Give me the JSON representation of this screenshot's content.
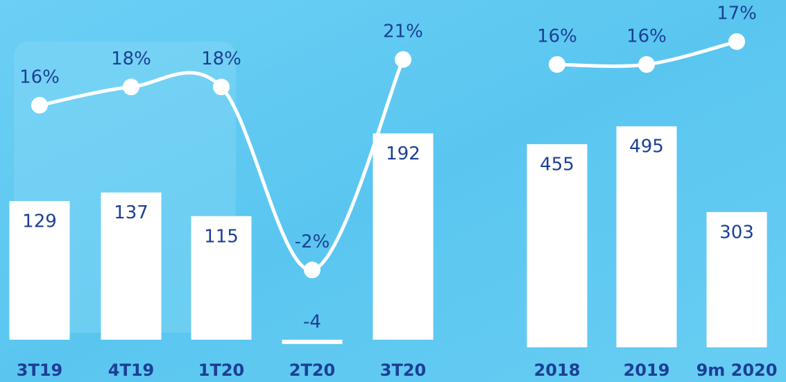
{
  "chart_data": [
    {
      "type": "bar",
      "categories": [
        "3T19",
        "4T19",
        "1T20",
        "2T20",
        "3T20"
      ],
      "series": [
        {
          "type": "bar",
          "color": "#ffffff",
          "values": [
            129,
            137,
            115,
            -4,
            192
          ]
        },
        {
          "type": "line",
          "color": "#ffffff",
          "values": [
            16,
            18,
            18,
            -2,
            21
          ],
          "value_labels": [
            "16%",
            "18%",
            "18%",
            "-2%",
            "21%"
          ]
        }
      ]
    },
    {
      "type": "bar",
      "categories": [
        "2018",
        "2019",
        "9m 2020"
      ],
      "series": [
        {
          "type": "bar",
          "color": "#ffffff",
          "values": [
            455,
            495,
            303
          ]
        },
        {
          "type": "line",
          "color": "#ffffff",
          "values": [
            16,
            16,
            17
          ],
          "value_labels": [
            "16%",
            "16%",
            "17%"
          ]
        }
      ]
    }
  ]
}
